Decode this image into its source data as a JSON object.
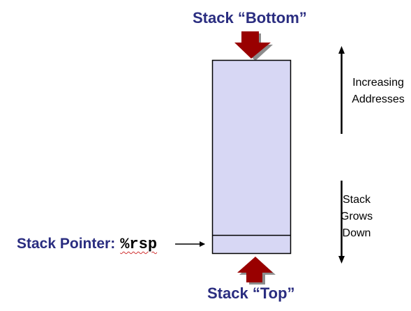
{
  "labels": {
    "stack_bottom": "Stack “Bottom”",
    "stack_top": "Stack “Top”",
    "stack_pointer": "Stack Pointer:",
    "register": "%rsp"
  },
  "side_labels": {
    "increasing": [
      "Increasing",
      "Addresses"
    ],
    "grows": [
      "Stack",
      "Grows",
      "Down"
    ]
  },
  "colors": {
    "title": "#2a2d80",
    "stack_fill": "#d7d7f4",
    "stack_border": "#000000",
    "red_arrow": "#990000",
    "arrow_shadow": "#8c8c8c"
  }
}
